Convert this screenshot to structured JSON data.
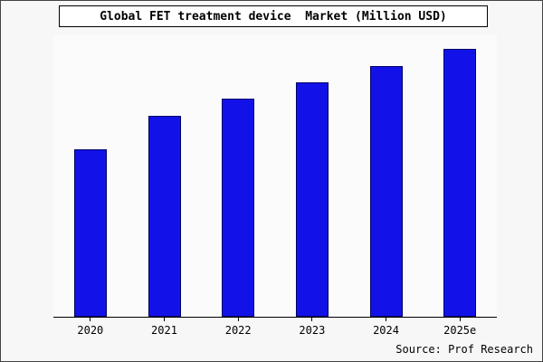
{
  "title": "Global FET treatment device  Market (Million USD)",
  "source": "Source: Prof Research",
  "chart_data": {
    "type": "bar",
    "title": "Global FET treatment device  Market (Million USD)",
    "categories": [
      "2020",
      "2021",
      "2022",
      "2023",
      "2024",
      "2025e"
    ],
    "values": [
      625,
      750,
      815,
      875,
      935,
      1000
    ],
    "xlabel": "",
    "ylabel": "",
    "ylim": [
      0,
      1050
    ],
    "grid": false,
    "legend": false,
    "bar_fill": "#1212e8",
    "bar_border": "#000066",
    "source_label": "Source: Prof Research"
  }
}
